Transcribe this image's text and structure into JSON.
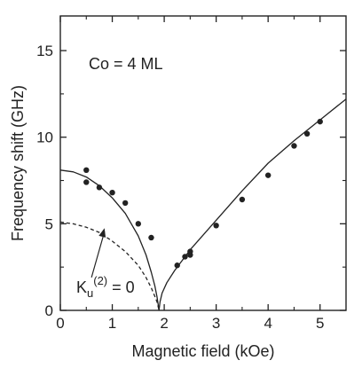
{
  "chart_data": {
    "type": "scatter",
    "annotation": "Co = 4 ML",
    "xlabel": "Magnetic field (kOe)",
    "ylabel": "Frequency shift (GHz)",
    "xlim": [
      0,
      5.5
    ],
    "ylim": [
      0,
      17
    ],
    "xticks": [
      0,
      1,
      2,
      3,
      4,
      5
    ],
    "yticks": [
      0,
      5,
      10,
      15
    ],
    "grid": false,
    "points": {
      "x": [
        0.5,
        0.5,
        0.75,
        1.0,
        1.25,
        1.5,
        1.75,
        2.25,
        2.4,
        2.5,
        2.5,
        3.0,
        3.5,
        4.0,
        4.5,
        4.75,
        5.0
      ],
      "y": [
        8.1,
        7.4,
        7.1,
        6.8,
        6.2,
        5.0,
        4.2,
        2.6,
        3.1,
        3.2,
        3.4,
        4.9,
        6.4,
        7.8,
        9.5,
        10.2,
        10.9
      ]
    },
    "fit_solid": {
      "x": [
        0,
        0.25,
        0.5,
        0.75,
        1.0,
        1.25,
        1.5,
        1.65,
        1.75,
        1.82,
        1.86,
        1.88,
        1.9,
        1.92,
        1.96,
        2.05,
        2.2,
        2.5,
        3.0,
        3.5,
        4.0,
        4.5,
        5.0,
        5.5
      ],
      "y": [
        8.1,
        8.0,
        7.7,
        7.2,
        6.5,
        5.6,
        4.3,
        3.2,
        2.2,
        1.4,
        0.8,
        0.4,
        0.0,
        0.5,
        1.0,
        1.6,
        2.3,
        3.5,
        5.2,
        6.9,
        8.5,
        9.8,
        11.0,
        12.2
      ]
    },
    "fit_dashed": {
      "x": [
        0,
        0.25,
        0.5,
        0.75,
        1.0,
        1.25,
        1.5,
        1.65,
        1.75,
        1.82,
        1.86,
        1.88,
        1.9
      ],
      "y": [
        5.1,
        5.0,
        4.8,
        4.5,
        4.0,
        3.4,
        2.6,
        1.9,
        1.3,
        0.8,
        0.5,
        0.25,
        0.0
      ]
    },
    "arrow_label": {
      "main": "K",
      "sub": "u",
      "sup": "(2)",
      "rest": " = 0"
    },
    "arrow_tip": {
      "x": 0.85,
      "y": 4.75
    },
    "arrow_tail": {
      "x": 0.6,
      "y": 1.9
    }
  }
}
